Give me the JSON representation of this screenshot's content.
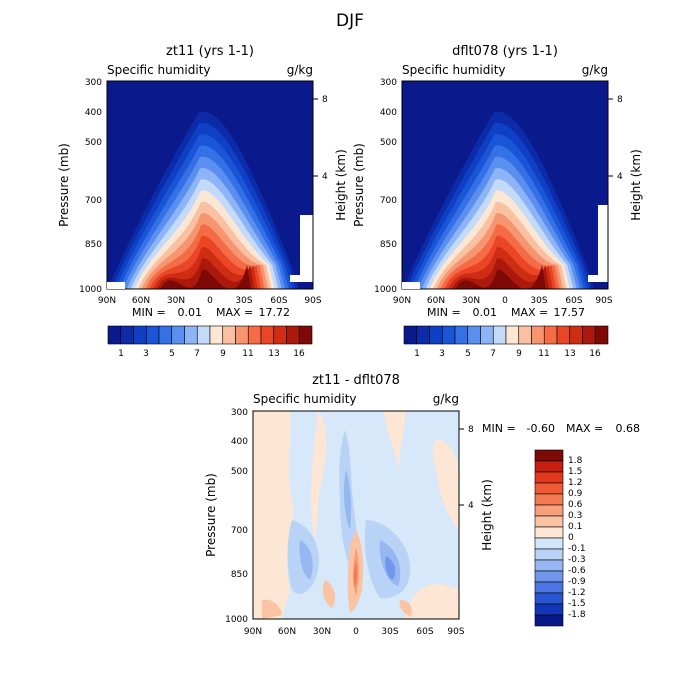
{
  "figure_title": "DJF",
  "chart_data": [
    {
      "type": "heatmap",
      "title": "zt11 (yrs 1-1)",
      "subtitle_left": "Specific humidity",
      "subtitle_right": "g/kg",
      "ylabel": "Pressure (mb)",
      "ylabel_right": "Height (km)",
      "x_ticks": [
        "90N",
        "60N",
        "30N",
        "0",
        "30S",
        "60S",
        "90S"
      ],
      "y_ticks": [
        "300",
        "400",
        "500",
        "700",
        "850",
        "1000"
      ],
      "y_ticks_right": [
        "8",
        "4"
      ],
      "stats": {
        "min_label": "MIN =",
        "min": "0.01",
        "max_label": "MAX =",
        "max": "17.72"
      },
      "colorbar": {
        "orientation": "horizontal",
        "colors": [
          "#0a1a8c",
          "#0c2ba8",
          "#0f3fc4",
          "#1a55d8",
          "#3470e6",
          "#5a8ff0",
          "#8cb4f6",
          "#c3daf9",
          "#fbe7d3",
          "#f9c1a2",
          "#f6956f",
          "#f46b45",
          "#ea4526",
          "#cf2c14",
          "#ab180c",
          "#7d0a06"
        ],
        "labels": [
          "1",
          "3",
          "5",
          "7",
          "9",
          "11",
          "13",
          "16"
        ]
      }
    },
    {
      "type": "heatmap",
      "title": "dflt078 (yrs 1-1)",
      "subtitle_left": "Specific humidity",
      "subtitle_right": "g/kg",
      "ylabel": "Pressure (mb)",
      "ylabel_right": "Height (km)",
      "x_ticks": [
        "90N",
        "60N",
        "30N",
        "0",
        "30S",
        "60S",
        "90S"
      ],
      "y_ticks": [
        "300",
        "400",
        "500",
        "700",
        "850",
        "1000"
      ],
      "y_ticks_right": [
        "8",
        "4"
      ],
      "stats": {
        "min_label": "MIN =",
        "min": "0.01",
        "max_label": "MAX =",
        "max": "17.57"
      },
      "colorbar": {
        "orientation": "horizontal",
        "colors": [
          "#0a1a8c",
          "#0c2ba8",
          "#0f3fc4",
          "#1a55d8",
          "#3470e6",
          "#5a8ff0",
          "#8cb4f6",
          "#c3daf9",
          "#fbe7d3",
          "#f9c1a2",
          "#f6956f",
          "#f46b45",
          "#ea4526",
          "#cf2c14",
          "#ab180c",
          "#7d0a06"
        ],
        "labels": [
          "1",
          "3",
          "5",
          "7",
          "9",
          "11",
          "13",
          "16"
        ]
      }
    },
    {
      "type": "heatmap",
      "title": "zt11 - dflt078",
      "subtitle_left": "Specific humidity",
      "subtitle_right": "g/kg",
      "ylabel": "Pressure (mb)",
      "ylabel_right": "Height (km)",
      "x_ticks": [
        "90N",
        "60N",
        "30N",
        "0",
        "30S",
        "60S",
        "90S"
      ],
      "y_ticks": [
        "300",
        "400",
        "500",
        "700",
        "850",
        "1000"
      ],
      "y_ticks_right": [
        "8",
        "4"
      ],
      "stats": {
        "min_label": "MIN =",
        "min": "-0.60",
        "max_label": "MAX =",
        "max": "0.68"
      },
      "colorbar": {
        "orientation": "vertical",
        "colors_top_to_bottom": [
          "#7d0a06",
          "#c81e10",
          "#e2391c",
          "#f05a34",
          "#f57c52",
          "#f8a07a",
          "#fac4a4",
          "#fde6d3",
          "#d4e6fa",
          "#b9d3f7",
          "#97b7f2",
          "#7197ec",
          "#4a75e2",
          "#2a55d2",
          "#1336b8",
          "#08178a"
        ],
        "labels": [
          "1.8",
          "1.5",
          "1.2",
          "0.9",
          "0.6",
          "0.3",
          "0.1",
          "0",
          "-0.1",
          "-0.3",
          "-0.6",
          "-0.9",
          "-1.2",
          "-1.5",
          "-1.8"
        ]
      }
    }
  ]
}
